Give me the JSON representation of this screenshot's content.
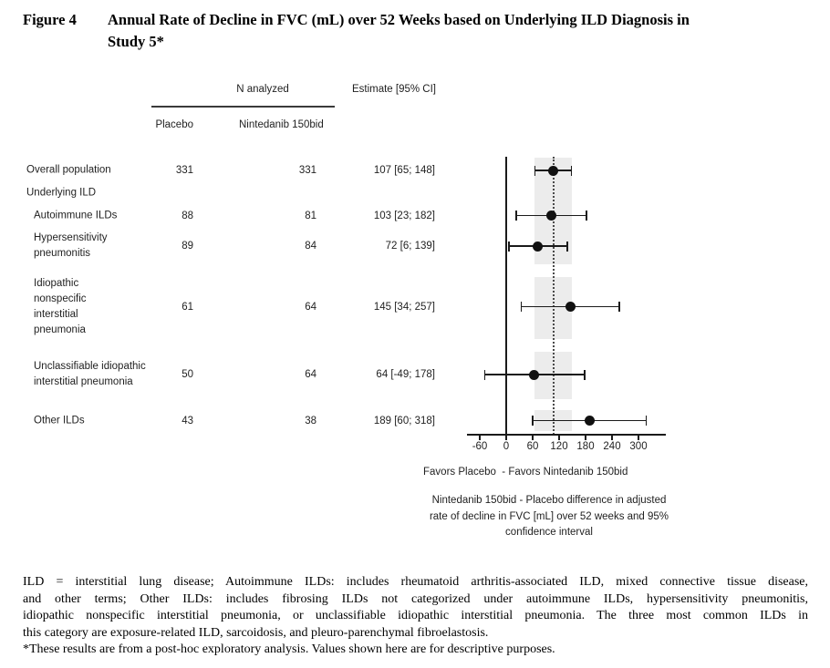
{
  "figure": {
    "label": "Figure 4",
    "title_line1": "Annual Rate of Decline in FVC (mL) over 52 Weeks based on Underlying ILD Diagnosis in",
    "title_line2": "Study 5*"
  },
  "table": {
    "group_header": "N analyzed",
    "col_placebo": "Placebo",
    "col_nintedanib": "Nintedanib 150bid",
    "col_estimate": "Estimate [95% CI]",
    "section_label": "Underlying ILD"
  },
  "chart_data": {
    "type": "scatter",
    "variant": "forest-plot",
    "title": "Annual Rate of Decline in FVC (mL) over 52 Weeks based on Underlying ILD Diagnosis in Study 5*",
    "xlabel_lines": [
      "Nintedanib 150bid - Placebo difference in adjusted",
      "rate of decline in FVC [mL] over 52 weeks and 95%",
      "confidence interval"
    ],
    "favors_label": "Favors Placebo  - Favors Nintedanib 150bid",
    "x_ticks": [
      -60,
      0,
      60,
      120,
      180,
      240,
      300
    ],
    "xlim": [
      -89,
      362
    ],
    "grid": false,
    "reference_line_x": 0,
    "dotted_line_x": 107,
    "shaded_band_x": [
      65,
      148
    ],
    "rows": [
      {
        "label": "Overall population",
        "n_placebo": "331",
        "n_nintedanib": "331",
        "estimate": 107,
        "ci_low": 65,
        "ci_high": 148,
        "estimate_text": "107 [65; 148]"
      },
      {
        "label": "Autoimmune ILDs",
        "n_placebo": "88",
        "n_nintedanib": "81",
        "estimate": 103,
        "ci_low": 23,
        "ci_high": 182,
        "estimate_text": "103 [23; 182]"
      },
      {
        "label": "Hypersensitivity pneumonitis",
        "n_placebo": "89",
        "n_nintedanib": "84",
        "estimate": 72,
        "ci_low": 6,
        "ci_high": 139,
        "estimate_text": "72 [6; 139]"
      },
      {
        "label": "Idiopathic nonspecific interstitial pneumonia",
        "n_placebo": "61",
        "n_nintedanib": "64",
        "estimate": 145,
        "ci_low": 34,
        "ci_high": 257,
        "estimate_text": "145 [34; 257]"
      },
      {
        "label": "Unclassifiable idiopathic interstitial pneumonia",
        "n_placebo": "50",
        "n_nintedanib": "64",
        "estimate": 64,
        "ci_low": -49,
        "ci_high": 178,
        "estimate_text": "64 [-49; 178]"
      },
      {
        "label": "Other ILDs",
        "n_placebo": "43",
        "n_nintedanib": "38",
        "estimate": 189,
        "ci_low": 60,
        "ci_high": 318,
        "estimate_text": "189 [60; 318]"
      }
    ]
  },
  "footnote": {
    "para_lines": [
      "ILD = interstitial lung disease; Autoimmune ILDs: includes rheumatoid arthritis-associated ILD, mixed connective tissue disease,",
      "and other terms; Other ILDs: includes fibrosing ILDs not categorized under autoimmune ILDs, hypersensitivity pneumonitis,",
      "idiopathic nonspecific interstitial pneumonia, or unclassifiable idiopathic interstitial pneumonia. The three most common ILDs in",
      "this category are exposure-related ILD, sarcoidosis, and pleuro-parenchymal fibroelastosis."
    ],
    "asterisk_line": "*These results are from a post-hoc exploratory analysis. Values shown here are for descriptive purposes."
  },
  "colors": {
    "band": "#ececec",
    "chart_ink": "#1a1a1a",
    "dotted_line": "#4a4a4a"
  }
}
